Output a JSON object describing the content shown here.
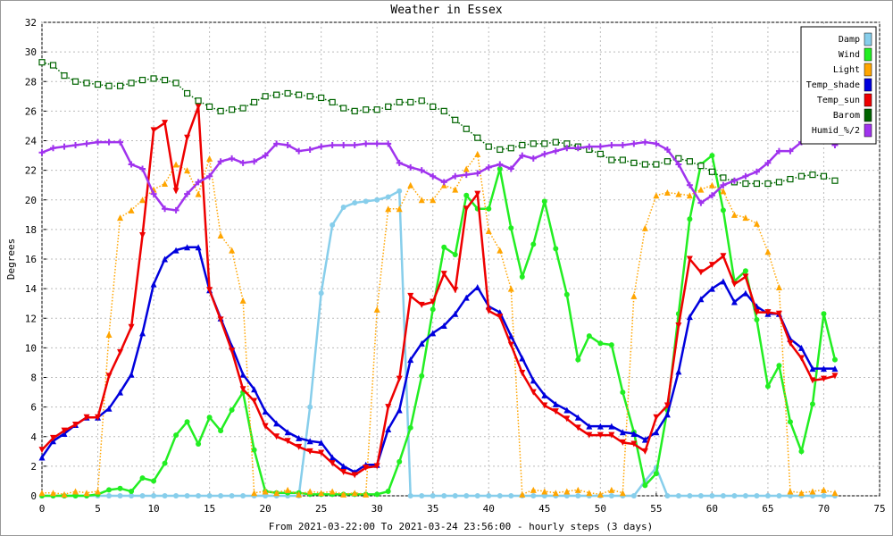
{
  "chart_data": {
    "type": "line",
    "title": "Weather in Essex",
    "ylabel": "Degrees",
    "xlabel": "From 2021-03-22:00 To 2021-03-24 23:56:00 - hourly steps (3 days)",
    "x": [
      0,
      1,
      2,
      3,
      4,
      5,
      6,
      7,
      8,
      9,
      10,
      11,
      12,
      13,
      14,
      15,
      16,
      17,
      18,
      19,
      20,
      21,
      22,
      23,
      24,
      25,
      26,
      27,
      28,
      29,
      30,
      31,
      32,
      33,
      34,
      35,
      36,
      37,
      38,
      39,
      40,
      41,
      42,
      43,
      44,
      45,
      46,
      47,
      48,
      49,
      50,
      51,
      52,
      53,
      54,
      55,
      56,
      57,
      58,
      59,
      60,
      61,
      62,
      63,
      64,
      65,
      66,
      67,
      68,
      69,
      70,
      71
    ],
    "xlim": [
      0,
      75
    ],
    "xticks": [
      0,
      5,
      10,
      15,
      20,
      25,
      30,
      35,
      40,
      45,
      50,
      55,
      60,
      65,
      70,
      75
    ],
    "ylim": [
      0,
      32
    ],
    "yticks": [
      0,
      2,
      4,
      6,
      8,
      10,
      12,
      14,
      16,
      18,
      20,
      22,
      24,
      26,
      28,
      30,
      32
    ],
    "grid": true,
    "legend": "top-right",
    "series": [
      {
        "name": "Damp",
        "color": "#87ceeb",
        "marker": "circle",
        "line_style": "solid",
        "values": [
          0,
          0,
          0,
          0,
          0,
          0,
          0,
          0,
          0,
          0,
          0,
          0,
          0,
          0,
          0,
          0,
          0,
          0,
          0,
          0,
          0,
          0,
          0,
          0,
          6,
          13.7,
          18.3,
          19.5,
          19.8,
          19.9,
          20.0,
          20.2,
          20.6,
          0,
          0,
          0,
          0,
          0,
          0,
          0,
          0,
          0,
          0,
          0,
          0,
          0,
          0,
          0,
          0,
          0,
          0,
          0,
          0,
          0,
          1.0,
          1.9,
          0,
          0,
          0,
          0,
          0,
          0,
          0,
          0,
          0,
          0,
          0,
          0,
          0,
          0,
          0,
          0
        ]
      },
      {
        "name": "Wind",
        "color": "#22ee22",
        "marker": "circle",
        "line_style": "solid",
        "values": [
          0,
          0,
          0,
          0,
          0,
          0.1,
          0.4,
          0.5,
          0.3,
          1.2,
          1.0,
          2.2,
          4.1,
          5.0,
          3.5,
          5.3,
          4.4,
          5.8,
          7.0,
          3.1,
          0.3,
          0.2,
          0.2,
          0.2,
          0.1,
          0.1,
          0.1,
          0.1,
          0.1,
          0.1,
          0.1,
          0.3,
          2.3,
          4.6,
          8.1,
          12.6,
          16.8,
          16.3,
          20.3,
          19.4,
          19.4,
          22.1,
          18.1,
          14.8,
          17.0,
          19.9,
          16.7,
          13.6,
          9.2,
          10.8,
          10.3,
          10.2,
          7.0,
          4.3,
          0.7,
          1.5,
          5.8,
          12.3,
          18.7,
          22.4,
          23.0,
          19.3,
          14.5,
          15.2,
          11.9,
          7.4,
          8.8,
          5.0,
          3.0,
          6.2,
          12.3,
          9.2
        ]
      },
      {
        "name": "Light",
        "color": "#ffa500",
        "marker": "triangle-up",
        "line_style": "dotted",
        "values": [
          0.2,
          0.2,
          0.1,
          0.3,
          0.2,
          0.3,
          10.9,
          18.8,
          19.3,
          20.0,
          20.7,
          21.1,
          22.4,
          22.0,
          20.4,
          22.8,
          17.6,
          16.6,
          13.2,
          0.2,
          0.3,
          0.2,
          0.4,
          0.1,
          0.3,
          0.2,
          0.3,
          0.1,
          0.2,
          0.1,
          12.6,
          19.4,
          19.4,
          21.0,
          20.0,
          20.0,
          21.0,
          20.7,
          22.1,
          23.1,
          17.9,
          16.6,
          14.0,
          0.1,
          0.4,
          0.3,
          0.2,
          0.3,
          0.4,
          0.2,
          0.1,
          0.4,
          0.2,
          13.5,
          18.1,
          20.3,
          20.5,
          20.4,
          20.3,
          20.7,
          21.0,
          20.6,
          19.0,
          18.8,
          18.4,
          16.5,
          14.1,
          0.3,
          0.2,
          0.3,
          0.4,
          0.2
        ]
      },
      {
        "name": "Temp_shade",
        "color": "#0000dd",
        "marker": "triangle-up",
        "line_style": "solid",
        "values": [
          2.6,
          3.7,
          4.2,
          4.8,
          5.3,
          5.3,
          5.9,
          7.0,
          8.2,
          11.0,
          14.3,
          16.0,
          16.6,
          16.8,
          16.8,
          13.9,
          12.0,
          10.1,
          8.2,
          7.2,
          5.7,
          4.9,
          4.3,
          3.9,
          3.7,
          3.6,
          2.6,
          2.0,
          1.6,
          2.1,
          2.1,
          4.5,
          5.8,
          9.2,
          10.3,
          11.0,
          11.5,
          12.3,
          13.4,
          14.1,
          12.8,
          12.4,
          10.8,
          9.3,
          7.8,
          6.8,
          6.2,
          5.8,
          5.3,
          4.7,
          4.7,
          4.7,
          4.3,
          4.2,
          3.8,
          4.3,
          5.5,
          8.4,
          12.1,
          13.3,
          14.0,
          14.5,
          13.1,
          13.7,
          12.8,
          12.3,
          12.3,
          10.6,
          10.0,
          8.6,
          8.6,
          8.6
        ]
      },
      {
        "name": "Temp_sun",
        "color": "#ee0000",
        "marker": "triangle-down",
        "line_style": "solid",
        "values": [
          3.1,
          3.9,
          4.4,
          4.8,
          5.3,
          5.3,
          8.1,
          9.7,
          11.4,
          17.6,
          24.7,
          25.2,
          20.6,
          24.2,
          26.3,
          13.9,
          11.9,
          9.8,
          7.2,
          6.4,
          4.7,
          4.0,
          3.7,
          3.3,
          3.0,
          2.9,
          2.2,
          1.6,
          1.4,
          1.9,
          2.0,
          6.0,
          7.9,
          13.5,
          12.9,
          13.1,
          15.0,
          13.9,
          19.4,
          20.4,
          12.5,
          12.1,
          10.2,
          8.3,
          7.0,
          6.1,
          5.7,
          5.2,
          4.6,
          4.1,
          4.1,
          4.1,
          3.6,
          3.5,
          3.0,
          5.3,
          6.1,
          11.5,
          16.0,
          15.1,
          15.6,
          16.2,
          14.3,
          14.8,
          12.4,
          12.4,
          12.3,
          10.3,
          9.3,
          7.8,
          7.9,
          8.1
        ]
      },
      {
        "name": "Barom",
        "color": "#006400",
        "marker": "square",
        "line_style": "dotted",
        "values": [
          29.3,
          29.1,
          28.4,
          28.0,
          27.9,
          27.8,
          27.7,
          27.7,
          27.9,
          28.1,
          28.2,
          28.1,
          27.9,
          27.2,
          26.7,
          26.3,
          26.0,
          26.1,
          26.2,
          26.6,
          27.0,
          27.1,
          27.2,
          27.1,
          27.0,
          26.9,
          26.6,
          26.2,
          26.0,
          26.1,
          26.1,
          26.3,
          26.6,
          26.6,
          26.7,
          26.3,
          26.0,
          25.4,
          24.8,
          24.2,
          23.6,
          23.4,
          23.5,
          23.7,
          23.8,
          23.8,
          23.9,
          23.8,
          23.6,
          23.4,
          23.1,
          22.7,
          22.7,
          22.5,
          22.4,
          22.4,
          22.6,
          22.8,
          22.6,
          22.3,
          21.9,
          21.5,
          21.2,
          21.1,
          21.1,
          21.1,
          21.2,
          21.4,
          21.6,
          21.7,
          21.6,
          21.3
        ]
      },
      {
        "name": "Humid_%/2",
        "color": "#a033ee",
        "marker": "cross",
        "line_style": "solid",
        "values": [
          23.2,
          23.5,
          23.6,
          23.7,
          23.8,
          23.9,
          23.9,
          23.9,
          22.4,
          22.1,
          20.4,
          19.4,
          19.3,
          20.4,
          21.2,
          21.6,
          22.6,
          22.8,
          22.5,
          22.6,
          23.0,
          23.8,
          23.7,
          23.3,
          23.4,
          23.6,
          23.7,
          23.7,
          23.7,
          23.8,
          23.8,
          23.8,
          22.5,
          22.2,
          22.0,
          21.6,
          21.2,
          21.6,
          21.7,
          21.8,
          22.2,
          22.4,
          22.1,
          23.0,
          22.8,
          23.1,
          23.3,
          23.5,
          23.5,
          23.6,
          23.6,
          23.7,
          23.7,
          23.8,
          23.9,
          23.8,
          23.4,
          22.4,
          21.0,
          19.8,
          20.3,
          21.0,
          21.3,
          21.6,
          21.9,
          22.5,
          23.3,
          23.3,
          23.9,
          24.1,
          24.2,
          23.7
        ]
      }
    ]
  }
}
